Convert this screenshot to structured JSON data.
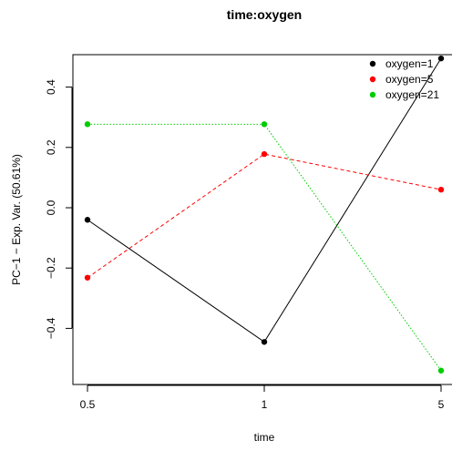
{
  "chart_data": {
    "type": "line",
    "title": "time:oxygen",
    "xlabel": "time",
    "ylabel": "PC−1 − Exp. Var. (50.61%)",
    "categories": [
      "0.5",
      "1",
      "5"
    ],
    "ylim": [
      -0.55,
      0.5
    ],
    "yticks": [
      {
        "value": -0.4,
        "label": "−0.4"
      },
      {
        "value": -0.2,
        "label": "−0.2"
      },
      {
        "value": 0.0,
        "label": "0.0"
      },
      {
        "value": 0.2,
        "label": "0.2"
      },
      {
        "value": 0.4,
        "label": "0.4"
      }
    ],
    "legend_position": "top-right",
    "grid": false,
    "series": [
      {
        "name": "oxygen=1",
        "color": "#000000",
        "line_style": "solid",
        "values": [
          -0.04,
          -0.445,
          0.495
        ]
      },
      {
        "name": "oxygen=5",
        "color": "#ff0000",
        "line_style": "dashed",
        "values": [
          -0.232,
          0.178,
          0.06
        ]
      },
      {
        "name": "oxygen=21",
        "color": "#00cd00",
        "line_style": "dotted",
        "values": [
          0.277,
          0.277,
          -0.54
        ]
      }
    ]
  }
}
